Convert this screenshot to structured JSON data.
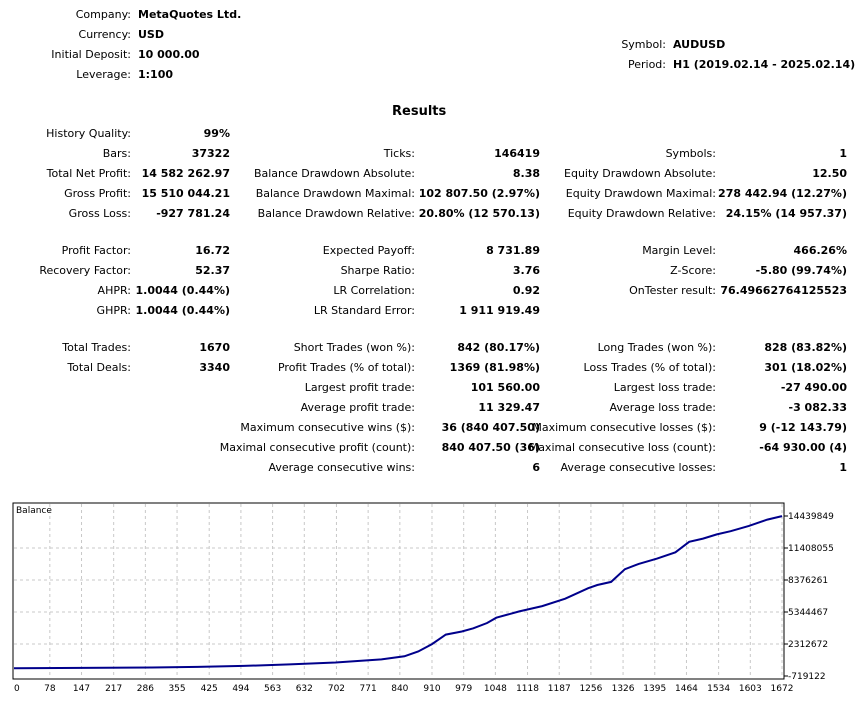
{
  "header": {
    "company_label": "Company:",
    "company": "MetaQuotes Ltd.",
    "currency_label": "Currency:",
    "currency": "USD",
    "deposit_label": "Initial Deposit:",
    "deposit": "10 000.00",
    "leverage_label": "Leverage:",
    "leverage": "1:100",
    "symbol_label": "Symbol:",
    "symbol": "AUDUSD",
    "period_label": "Period:",
    "period": "H1 (2019.02.14 - 2025.02.14)"
  },
  "results_title": "Results",
  "col1": [
    {
      "label": "History Quality:",
      "value": "99%"
    },
    {
      "label": "Bars:",
      "value": "37322"
    },
    {
      "label": "Total Net Profit:",
      "value": "14 582 262.97"
    },
    {
      "label": "Gross Profit:",
      "value": "15 510 044.21"
    },
    {
      "label": "Gross Loss:",
      "value": "-927 781.24"
    },
    {
      "label": "Profit Factor:",
      "value": "16.72"
    },
    {
      "label": "Recovery Factor:",
      "value": "52.37"
    },
    {
      "label": "AHPR:",
      "value": "1.0044 (0.44%)"
    },
    {
      "label": "GHPR:",
      "value": "1.0044 (0.44%)"
    },
    {
      "label": "Total Trades:",
      "value": "1670"
    },
    {
      "label": "Total Deals:",
      "value": "3340"
    }
  ],
  "col2": [
    {
      "label": "Ticks:",
      "value": "146419"
    },
    {
      "label": "Balance Drawdown Absolute:",
      "value": "8.38"
    },
    {
      "label": "Balance Drawdown Maximal:",
      "value": "102 807.50 (2.97%)"
    },
    {
      "label": "Balance Drawdown Relative:",
      "value": "20.80% (12 570.13)"
    },
    {
      "label": "Expected Payoff:",
      "value": "8 731.89"
    },
    {
      "label": "Sharpe Ratio:",
      "value": "3.76"
    },
    {
      "label": "LR Correlation:",
      "value": "0.92"
    },
    {
      "label": "LR Standard Error:",
      "value": "1 911 919.49"
    },
    {
      "label": "Short Trades (won %):",
      "value": "842 (80.17%)"
    },
    {
      "label": "Profit Trades (% of total):",
      "value": "1369 (81.98%)"
    },
    {
      "label": "Largest profit trade:",
      "value": "101 560.00"
    },
    {
      "label": "Average profit trade:",
      "value": "11 329.47"
    },
    {
      "label": "Maximum consecutive wins ($):",
      "value": "36 (840 407.50)"
    },
    {
      "label": "Maximal consecutive profit (count):",
      "value": "840 407.50 (36)"
    },
    {
      "label": "Average consecutive wins:",
      "value": "6"
    }
  ],
  "col3": [
    {
      "label": "Symbols:",
      "value": "1"
    },
    {
      "label": "Equity Drawdown Absolute:",
      "value": "12.50"
    },
    {
      "label": "Equity Drawdown Maximal:",
      "value": "278 442.94 (12.27%)"
    },
    {
      "label": "Equity Drawdown Relative:",
      "value": "24.15% (14 957.37)"
    },
    {
      "label": "Margin Level:",
      "value": "466.26%"
    },
    {
      "label": "Z-Score:",
      "value": "-5.80 (99.74%)"
    },
    {
      "label": "OnTester result:",
      "value": "76.49662764125523"
    },
    {
      "label": "Long Trades (won %):",
      "value": "828 (83.82%)"
    },
    {
      "label": "Loss Trades (% of total):",
      "value": "301 (18.02%)"
    },
    {
      "label": "Largest loss trade:",
      "value": "-27 490.00"
    },
    {
      "label": "Average loss trade:",
      "value": "-3 082.33"
    },
    {
      "label": "Maximum consecutive losses ($):",
      "value": "9 (-12 143.79)"
    },
    {
      "label": "Maximal consecutive loss (count):",
      "value": "-64 930.00 (4)"
    },
    {
      "label": "Average consecutive losses:",
      "value": "1"
    }
  ],
  "chart_data": {
    "type": "line",
    "title": "Balance",
    "x_ticks": [
      "0",
      "78",
      "147",
      "217",
      "286",
      "355",
      "425",
      "494",
      "563",
      "632",
      "702",
      "771",
      "840",
      "910",
      "979",
      "1048",
      "1118",
      "1187",
      "1256",
      "1326",
      "1395",
      "1464",
      "1534",
      "1603",
      "1672"
    ],
    "y_ticks": [
      "14439849",
      "11408055",
      "8376261",
      "5344467",
      "2312672",
      "-719122"
    ],
    "xlim": [
      0,
      1672
    ],
    "ylim": [
      -719122,
      14439849
    ],
    "grid": true,
    "series": [
      {
        "color": "#00008b",
        "x": [
          0,
          100,
          200,
          300,
          400,
          500,
          600,
          700,
          800,
          850,
          880,
          910,
          940,
          975,
          1000,
          1030,
          1050,
          1100,
          1150,
          1200,
          1250,
          1270,
          1300,
          1330,
          1360,
          1400,
          1440,
          1470,
          1500,
          1530,
          1560,
          1600,
          1640,
          1672
        ],
        "y": [
          10000,
          40000,
          60000,
          90000,
          140000,
          240000,
          380000,
          560000,
          850000,
          1150000,
          1600000,
          2300000,
          3200000,
          3500000,
          3800000,
          4300000,
          4800000,
          5400000,
          5900000,
          6600000,
          7600000,
          7900000,
          8200000,
          9400000,
          9900000,
          10400000,
          11000000,
          12000000,
          12300000,
          12700000,
          13000000,
          13500000,
          14100000,
          14430000
        ]
      }
    ]
  }
}
